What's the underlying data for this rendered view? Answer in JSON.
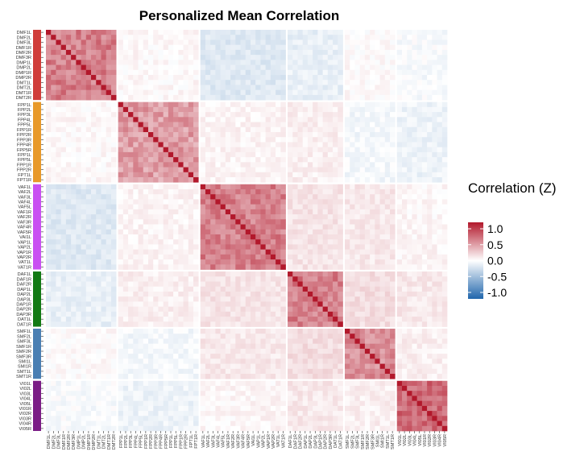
{
  "chart_data": {
    "type": "heatmap",
    "title": "Personalized Mean Correlation",
    "xlabel": "",
    "ylabel": "",
    "networks": [
      {
        "name": "DMF",
        "color": "#d03d3a",
        "labels": [
          "DMF1L",
          "DMF2L",
          "DMF3L",
          "DMF1R",
          "DMF2R",
          "DMF3R",
          "DMP1L",
          "DMP2L",
          "DMP1R",
          "DMP2R",
          "DMT1L",
          "DMT2L",
          "DMT1R",
          "DMT2R"
        ]
      },
      {
        "name": "FPP",
        "color": "#e8992a",
        "labels": [
          "FPP1L",
          "FPP2L",
          "FPP3L",
          "FPP4L",
          "FPP5L",
          "FPP1R",
          "FPP2R",
          "FPP3R",
          "FPP4R",
          "FPP5R",
          "FPP1L",
          "FPP5L",
          "FPP1R",
          "FPP2R",
          "FPT1L",
          "FPT1R"
        ]
      },
      {
        "name": "VAF",
        "color": "#c94ff2",
        "labels": [
          "VAF1L",
          "VAF2L",
          "VAF3L",
          "VAF4L",
          "VAF5L",
          "VAF1R",
          "VAF2R",
          "VAF3R",
          "VAF4R",
          "VAF5R",
          "VAI1L",
          "VAP1L",
          "VAP2L",
          "VAP1R",
          "VAP2R",
          "VAT1L",
          "VAT1R"
        ]
      },
      {
        "name": "DA",
        "color": "#127a14",
        "labels": [
          "DAF1L",
          "DAF1R",
          "DAF2R",
          "DAP1L",
          "DAP2L",
          "DAP3L",
          "DAP1R",
          "DAP2R",
          "DAP3R",
          "DAT1L",
          "DAT1R"
        ]
      },
      {
        "name": "SM",
        "color": "#4a7fb3",
        "labels": [
          "SMF1L",
          "SMF2L",
          "SMF3L",
          "SMF1R",
          "SMF2R",
          "SMF3R",
          "SMI1L",
          "SMI1R",
          "SMT1L",
          "SMT1R"
        ]
      },
      {
        "name": "VI",
        "color": "#7b1d86",
        "labels": [
          "VI01L",
          "VI02L",
          "VI03L",
          "VI04L",
          "VI05L",
          "VI01R",
          "VI02R",
          "VI03R",
          "VI04R",
          "VI05R"
        ]
      }
    ],
    "value_range": [
      -1.0,
      1.0
    ],
    "block_means": [
      [
        0.55,
        0.03,
        -0.15,
        -0.1,
        0.02,
        -0.03
      ],
      [
        0.03,
        0.42,
        0.05,
        0.07,
        -0.05,
        -0.08
      ],
      [
        -0.15,
        0.05,
        0.55,
        0.12,
        0.1,
        0.04
      ],
      [
        -0.1,
        0.07,
        0.12,
        0.55,
        0.15,
        0.1
      ],
      [
        0.02,
        -0.05,
        0.1,
        0.15,
        0.5,
        0.07
      ],
      [
        -0.03,
        -0.08,
        0.04,
        0.1,
        0.07,
        0.65
      ]
    ],
    "colormap": {
      "low": "#2166ac",
      "mid": "#ffffff",
      "high": "#b2182b"
    },
    "legend": {
      "title": "Correlation (Z)",
      "position": "right",
      "ticks": [
        "1.0",
        "0.5",
        "0.0",
        "-0.5",
        "-1.0"
      ]
    }
  }
}
